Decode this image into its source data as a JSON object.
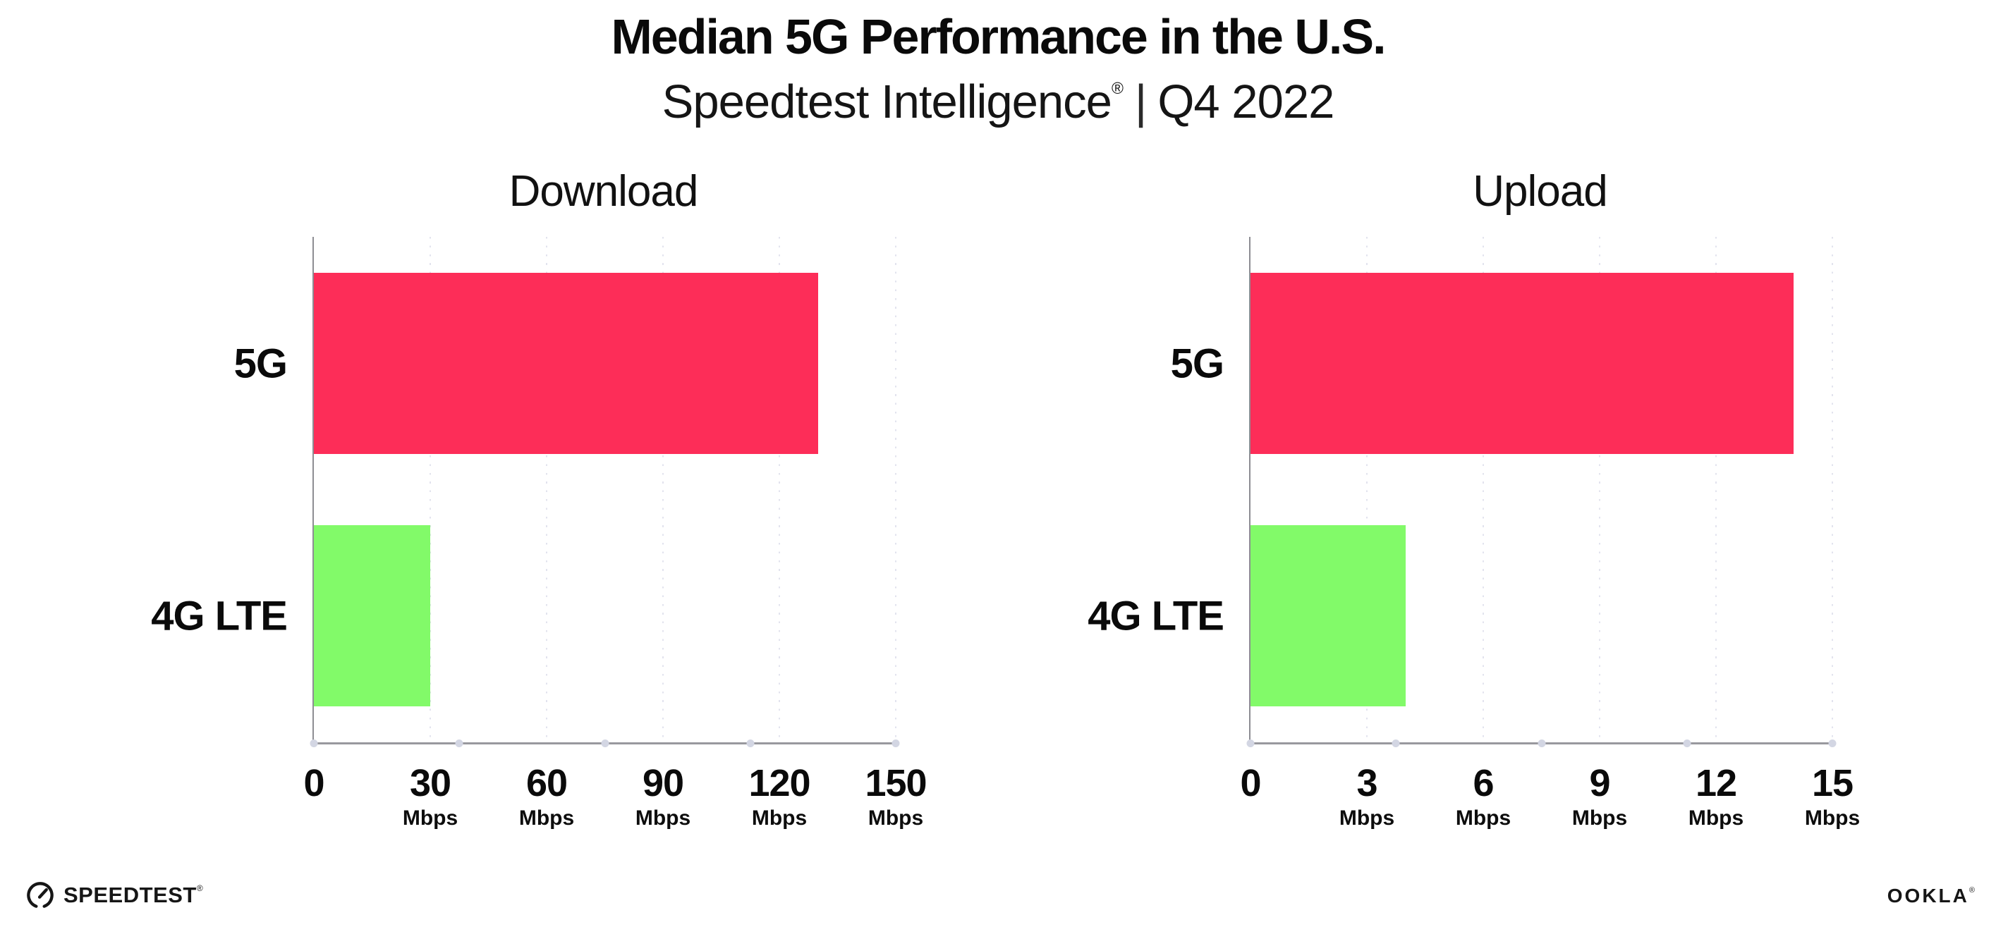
{
  "header": {
    "title": "Median 5G Performance in the U.S.",
    "subtitle": {
      "brand": "Speedtest Intelligence",
      "registered_mark": "®",
      "separator": "|",
      "period": "Q4 2022"
    }
  },
  "chart_data": [
    {
      "type": "bar",
      "orientation": "horizontal",
      "title": "Download",
      "categories": [
        "5G",
        "4G LTE"
      ],
      "values": [
        130,
        30
      ],
      "value_unit": "Mbps",
      "xlim": [
        0,
        150
      ],
      "xticks": [
        0,
        30,
        60,
        90,
        120,
        150
      ],
      "tick_unit": "Mbps",
      "bar_colors": [
        "#fd2d58",
        "#82fa69"
      ],
      "grid": "dotted-vertical",
      "legend": "none"
    },
    {
      "type": "bar",
      "orientation": "horizontal",
      "title": "Upload",
      "categories": [
        "5G",
        "4G LTE"
      ],
      "values": [
        14,
        4
      ],
      "value_unit": "Mbps",
      "xlim": [
        0,
        15
      ],
      "xticks": [
        0,
        3,
        6,
        9,
        12,
        15
      ],
      "tick_unit": "Mbps",
      "bar_colors": [
        "#fd2d58",
        "#82fa69"
      ],
      "grid": "dotted-vertical",
      "legend": "none"
    }
  ],
  "colors": {
    "bar_5g": "#fd2d58",
    "bar_4g_lte": "#82fa69",
    "axis": "#98989e",
    "gridline": "#e2e3ee",
    "axis_dot": "#d3d6e3",
    "text": "#0d0d0d"
  },
  "footer": {
    "speedtest": {
      "label": "SPEEDTEST",
      "registered_mark": "®"
    },
    "ookla": {
      "label": "OOKLA",
      "registered_mark": "®"
    }
  }
}
